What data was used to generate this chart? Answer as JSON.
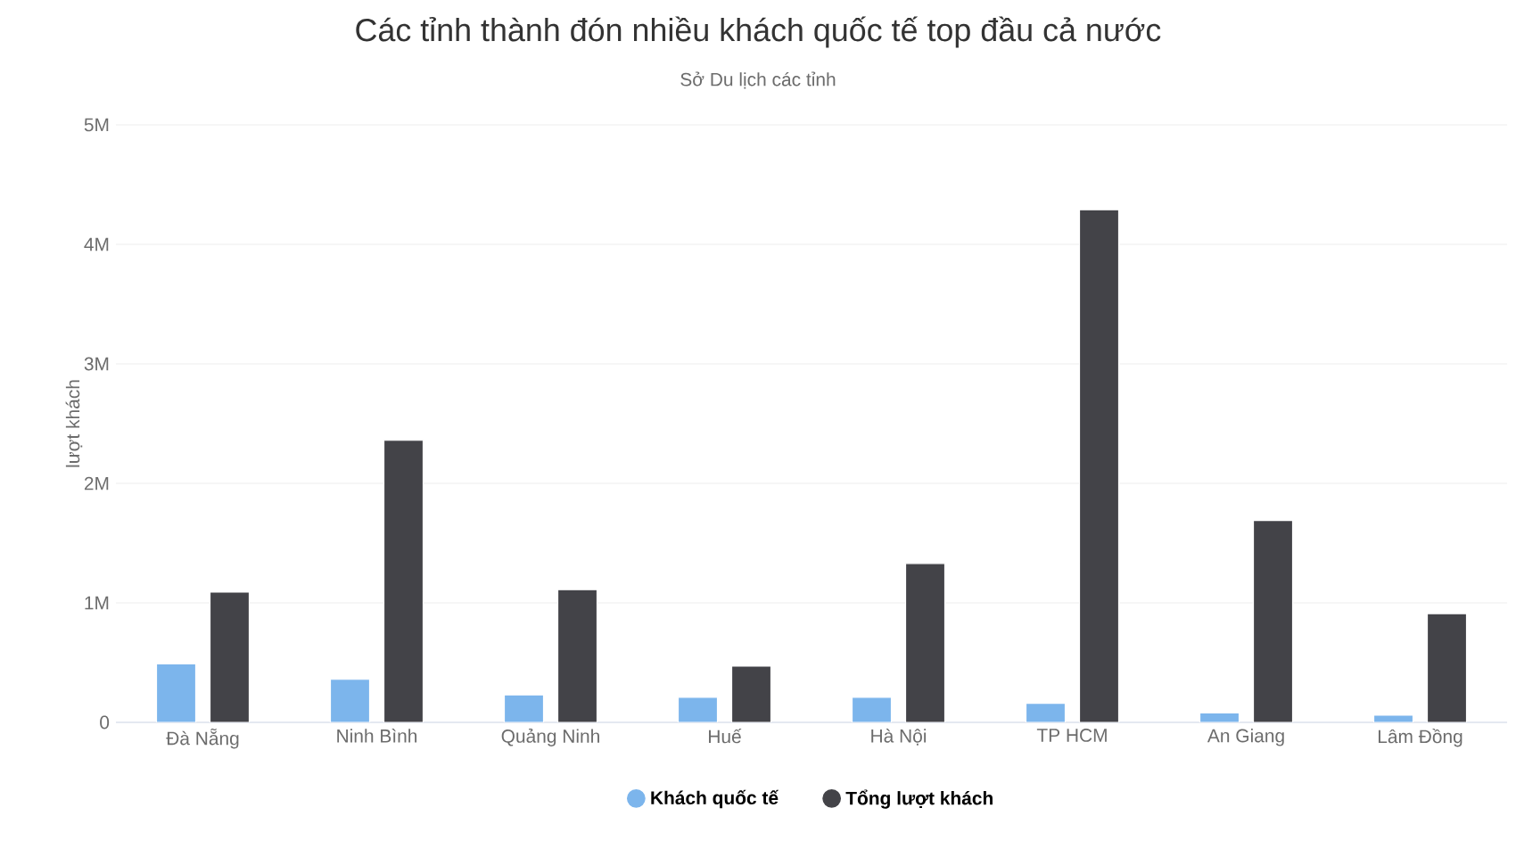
{
  "chart_data": {
    "type": "bar",
    "title": "Các tỉnh thành đón nhiều khách quốc tế top đầu cả nước",
    "subtitle": "Sở Du lịch các tỉnh",
    "ylabel": "lượt khách",
    "categories": [
      "Đà Nẵng",
      "Ninh Bình",
      "Quảng Ninh",
      "Huế",
      "Hà Nội",
      "TP HCM",
      "An Giang",
      "Lâm Đồng"
    ],
    "series": [
      {
        "name": "Khách quốc tế",
        "color": "#7cb5ec",
        "values": [
          490000,
          360000,
          230000,
          210000,
          210000,
          160000,
          80000,
          60000
        ]
      },
      {
        "name": "Tổng lượt khách",
        "color": "#434348",
        "values": [
          1090000,
          2360000,
          1110000,
          470000,
          1330000,
          4290000,
          1690000,
          910000
        ]
      }
    ],
    "ylim": [
      0,
      5000000
    ],
    "yticks": [
      0,
      {
        "value": 1000000,
        "label": "1M"
      },
      {
        "value": 2000000,
        "label": "2M"
      },
      {
        "value": 3000000,
        "label": "3M"
      },
      {
        "value": 4000000,
        "label": "4M"
      },
      {
        "value": 5000000,
        "label": "5M"
      }
    ],
    "grid": "y",
    "legend": "bottom"
  }
}
